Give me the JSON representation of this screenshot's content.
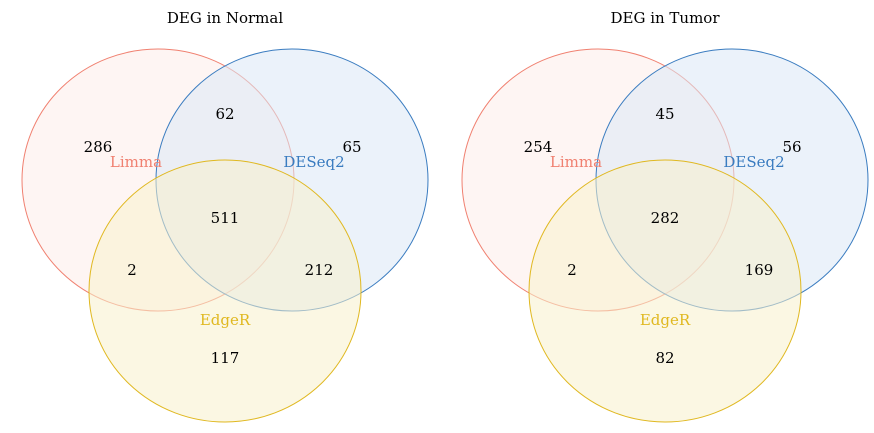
{
  "diagrams": [
    {
      "title": "DEG in Normal",
      "sets": [
        {
          "label": "Limma",
          "color": "#f08070",
          "fill": "#fdecea"
        },
        {
          "label": "DESeq2",
          "color": "#3a7cc0",
          "fill": "#dbe8f5"
        },
        {
          "label": "EdgeR",
          "color": "#e0b820",
          "fill": "#f8f0cc"
        }
      ],
      "counts": {
        "limma_only": "286",
        "deseq2_only": "65",
        "limma_deseq2": "62",
        "all_three": "511",
        "limma_edger": "2",
        "deseq2_edger": "212",
        "edger_only": "117"
      }
    },
    {
      "title": "DEG in Tumor",
      "sets": [
        {
          "label": "Limma",
          "color": "#f08070",
          "fill": "#fdecea"
        },
        {
          "label": "DESeq2",
          "color": "#3a7cc0",
          "fill": "#dbe8f5"
        },
        {
          "label": "EdgeR",
          "color": "#e0b820",
          "fill": "#f8f0cc"
        }
      ],
      "counts": {
        "limma_only": "254",
        "deseq2_only": "56",
        "limma_deseq2": "45",
        "all_three": "282",
        "limma_edger": "2",
        "deseq2_edger": "169",
        "edger_only": "82"
      }
    }
  ]
}
